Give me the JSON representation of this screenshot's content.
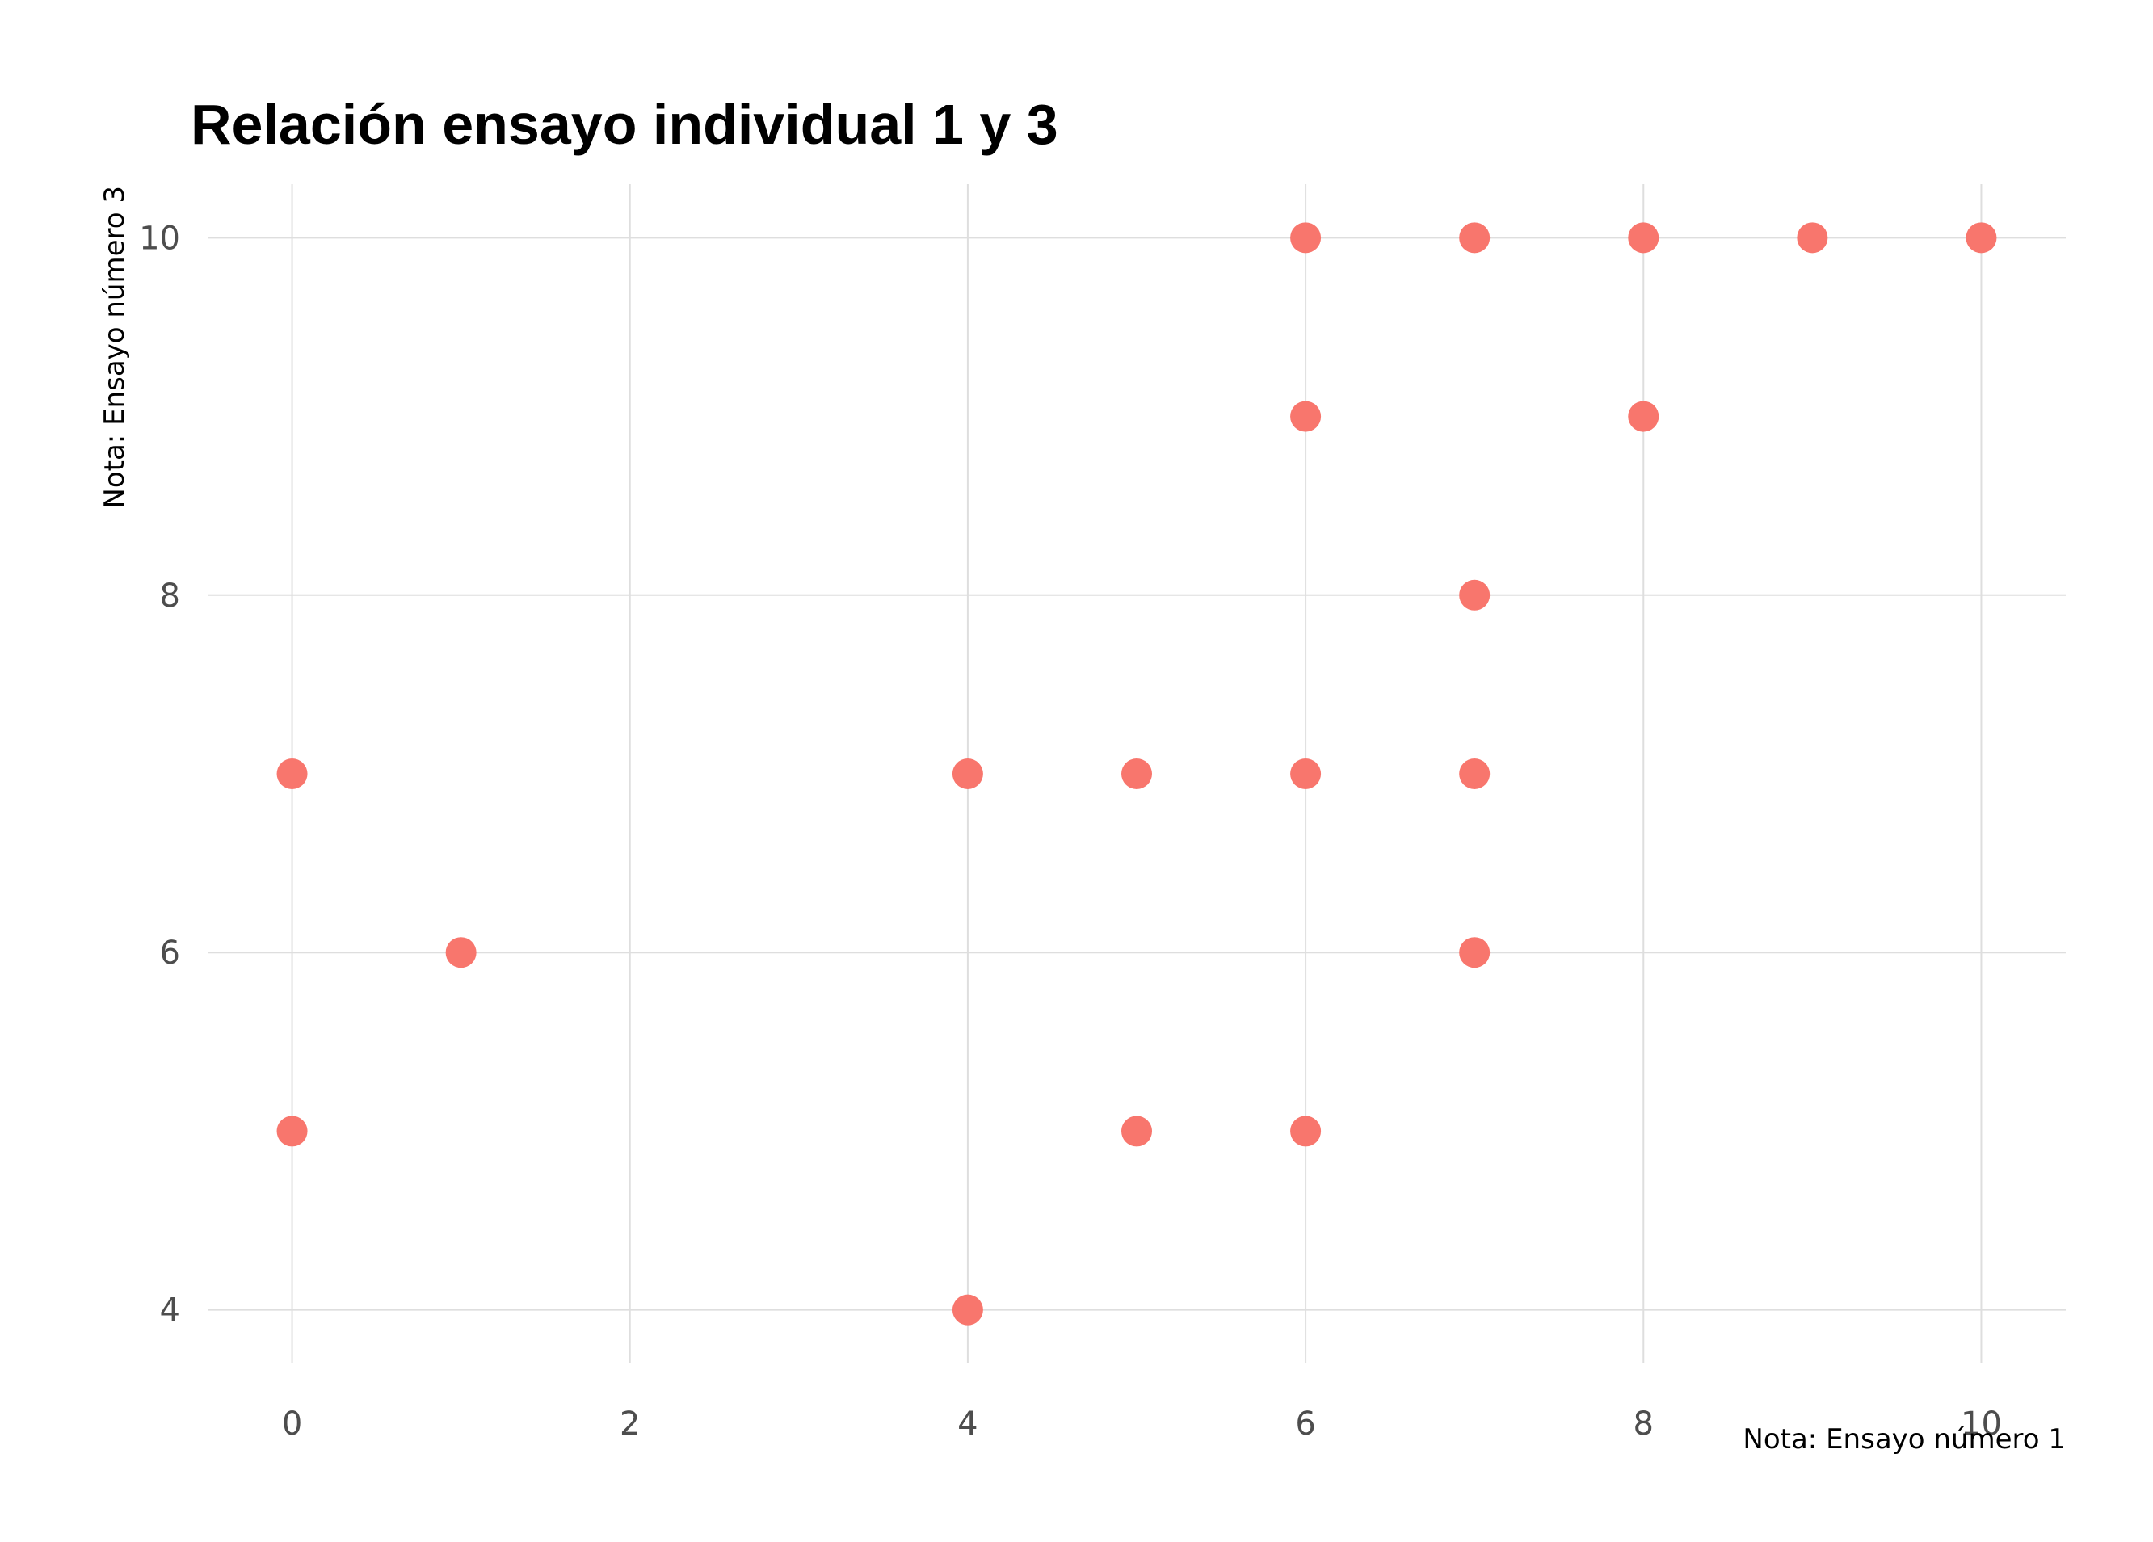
{
  "chart_data": {
    "type": "scatter",
    "title": "Relación ensayo individual 1 y 3",
    "xlabel": "Nota: Ensayo número 1",
    "ylabel": "Nota: Ensayo número 3",
    "xlim": [
      -0.5,
      10.5
    ],
    "ylim": [
      3.7,
      10.3
    ],
    "x_ticks": [
      0,
      2,
      4,
      6,
      8,
      10
    ],
    "y_ticks": [
      4,
      6,
      8,
      10
    ],
    "x_tick_labels": [
      "0",
      "2",
      "4",
      "6",
      "8",
      "10"
    ],
    "y_tick_labels": [
      "4",
      "6",
      "8",
      "10"
    ],
    "grid": true,
    "legend": "none",
    "point_color": "#F8766D",
    "points": [
      {
        "x": 0,
        "y": 7
      },
      {
        "x": 0,
        "y": 5
      },
      {
        "x": 1,
        "y": 6
      },
      {
        "x": 4,
        "y": 7
      },
      {
        "x": 4,
        "y": 4
      },
      {
        "x": 5,
        "y": 7
      },
      {
        "x": 5,
        "y": 5
      },
      {
        "x": 6,
        "y": 10
      },
      {
        "x": 6,
        "y": 9
      },
      {
        "x": 6,
        "y": 7
      },
      {
        "x": 6,
        "y": 5
      },
      {
        "x": 7,
        "y": 10
      },
      {
        "x": 7,
        "y": 8
      },
      {
        "x": 7,
        "y": 7
      },
      {
        "x": 7,
        "y": 6
      },
      {
        "x": 8,
        "y": 10
      },
      {
        "x": 8,
        "y": 9
      },
      {
        "x": 9,
        "y": 10
      },
      {
        "x": 10,
        "y": 10
      }
    ]
  }
}
